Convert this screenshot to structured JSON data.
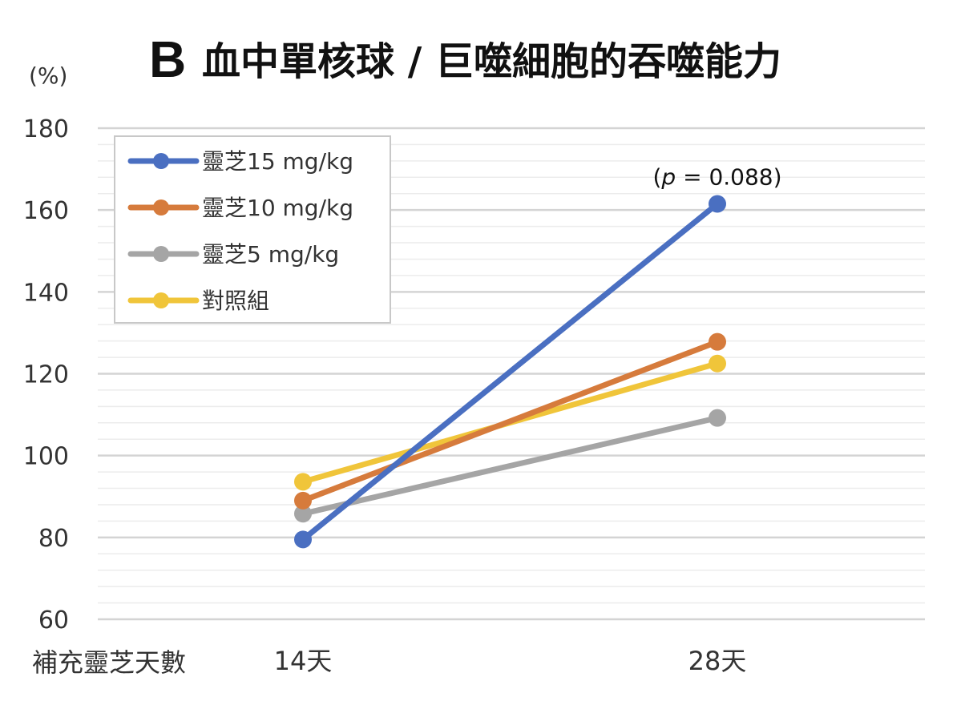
{
  "chart_data": {
    "type": "line",
    "title_letter": "B",
    "title": "血中單核球 / 巨噬細胞的吞噬能力",
    "ylabel": "(%)",
    "xlabel": "補充靈芝天數",
    "categories": [
      "14天",
      "28天"
    ],
    "ylim": [
      60,
      180
    ],
    "yticks": [
      60,
      80,
      100,
      120,
      140,
      160,
      180
    ],
    "grid": true,
    "legend_position": "top-left",
    "series": [
      {
        "name": "靈芝15 mg/kg",
        "color": "#4a6fc1",
        "values": [
          79.5,
          161.5
        ]
      },
      {
        "name": "靈芝10 mg/kg",
        "color": "#d67b3c",
        "values": [
          89,
          127.8
        ]
      },
      {
        "name": "靈芝5 mg/kg",
        "color": "#a5a5a5",
        "values": [
          85.8,
          109.2
        ]
      },
      {
        "name": "對照組",
        "color": "#f0c53a",
        "values": [
          93.6,
          122.5
        ]
      }
    ],
    "annotation": {
      "prefix": "(",
      "italic": "p",
      "suffix": " = 0.088)",
      "series": 0,
      "point": 1
    }
  }
}
